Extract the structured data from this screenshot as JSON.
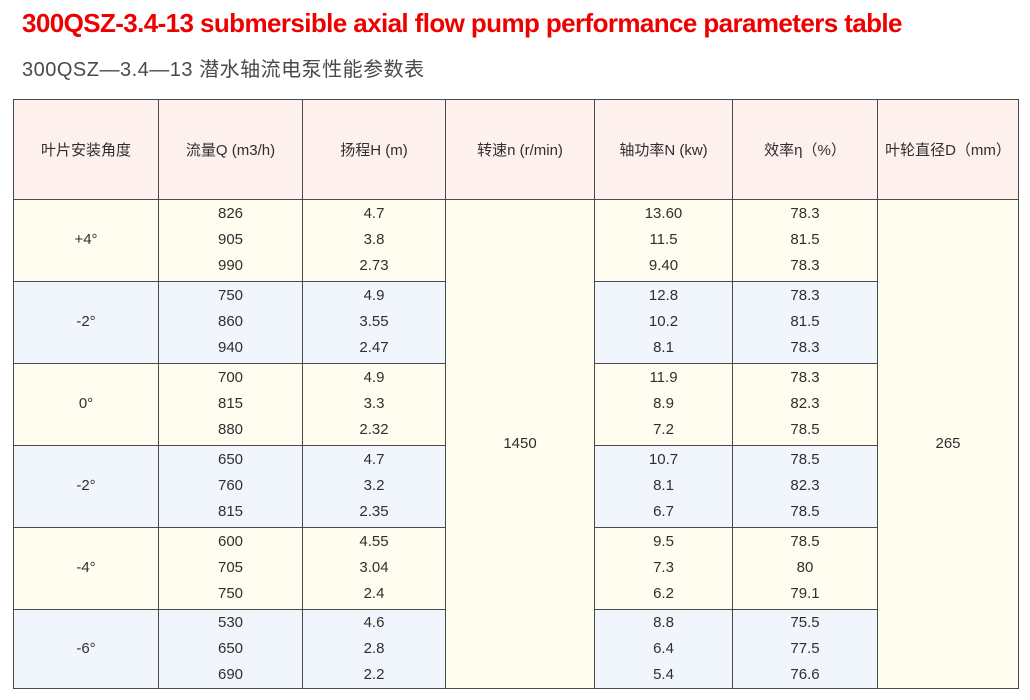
{
  "page": {
    "title": "300QSZ-3.4-13 submersible axial flow pump performance parameters table",
    "subtitle": "300QSZ—3.4—13 潜水轴流电泵性能参数表"
  },
  "colors": {
    "title_red": "#ee0000",
    "subtitle_gray": "#4a4a4a",
    "header_bg": "#fdf0ed",
    "row_cream": "#fffdf0",
    "row_blue": "#f0f6fb",
    "merged_bg": "#ffffff",
    "border": "#4a4a4a",
    "text": "#2f2f2f"
  },
  "table": {
    "columns": [
      "叶片安装角度",
      "流量Q (m3/h)",
      "扬程H (m)",
      "转速n (r/min)",
      "轴功率N (kw)",
      "效率η（%）",
      "叶轮直径D（mm）"
    ],
    "speed_rpm": "1450",
    "impeller_diameter_mm": "265",
    "rows": [
      {
        "angle": "+4°",
        "flow": [
          "826",
          "905",
          "990"
        ],
        "head": [
          "4.7",
          "3.8",
          "2.73"
        ],
        "power": [
          "13.60",
          "11.5",
          "9.40"
        ],
        "efficiency": [
          "78.3",
          "81.5",
          "78.3"
        ]
      },
      {
        "angle": "-2°",
        "flow": [
          "750",
          "860",
          "940"
        ],
        "head": [
          "4.9",
          "3.55",
          "2.47"
        ],
        "power": [
          "12.8",
          "10.2",
          "8.1"
        ],
        "efficiency": [
          "78.3",
          "81.5",
          "78.3"
        ]
      },
      {
        "angle": "0°",
        "flow": [
          "700",
          "815",
          "880"
        ],
        "head": [
          "4.9",
          "3.3",
          "2.32"
        ],
        "power": [
          "11.9",
          "8.9",
          "7.2"
        ],
        "efficiency": [
          "78.3",
          "82.3",
          "78.5"
        ]
      },
      {
        "angle": "-2°",
        "flow": [
          "650",
          "760",
          "815"
        ],
        "head": [
          "4.7",
          "3.2",
          "2.35"
        ],
        "power": [
          "10.7",
          "8.1",
          "6.7"
        ],
        "efficiency": [
          "78.5",
          "82.3",
          "78.5"
        ]
      },
      {
        "angle": "-4°",
        "flow": [
          "600",
          "705",
          "750"
        ],
        "head": [
          "4.55",
          "3.04",
          "2.4"
        ],
        "power": [
          "9.5",
          "7.3",
          "6.2"
        ],
        "efficiency": [
          "78.5",
          "80",
          "79.1"
        ]
      },
      {
        "angle": "-6°",
        "flow": [
          "530",
          "650",
          "690"
        ],
        "head": [
          "4.6",
          "2.8",
          "2.2"
        ],
        "power": [
          "8.8",
          "6.4",
          "5.4"
        ],
        "efficiency": [
          "75.5",
          "77.5",
          "76.6"
        ]
      }
    ]
  }
}
